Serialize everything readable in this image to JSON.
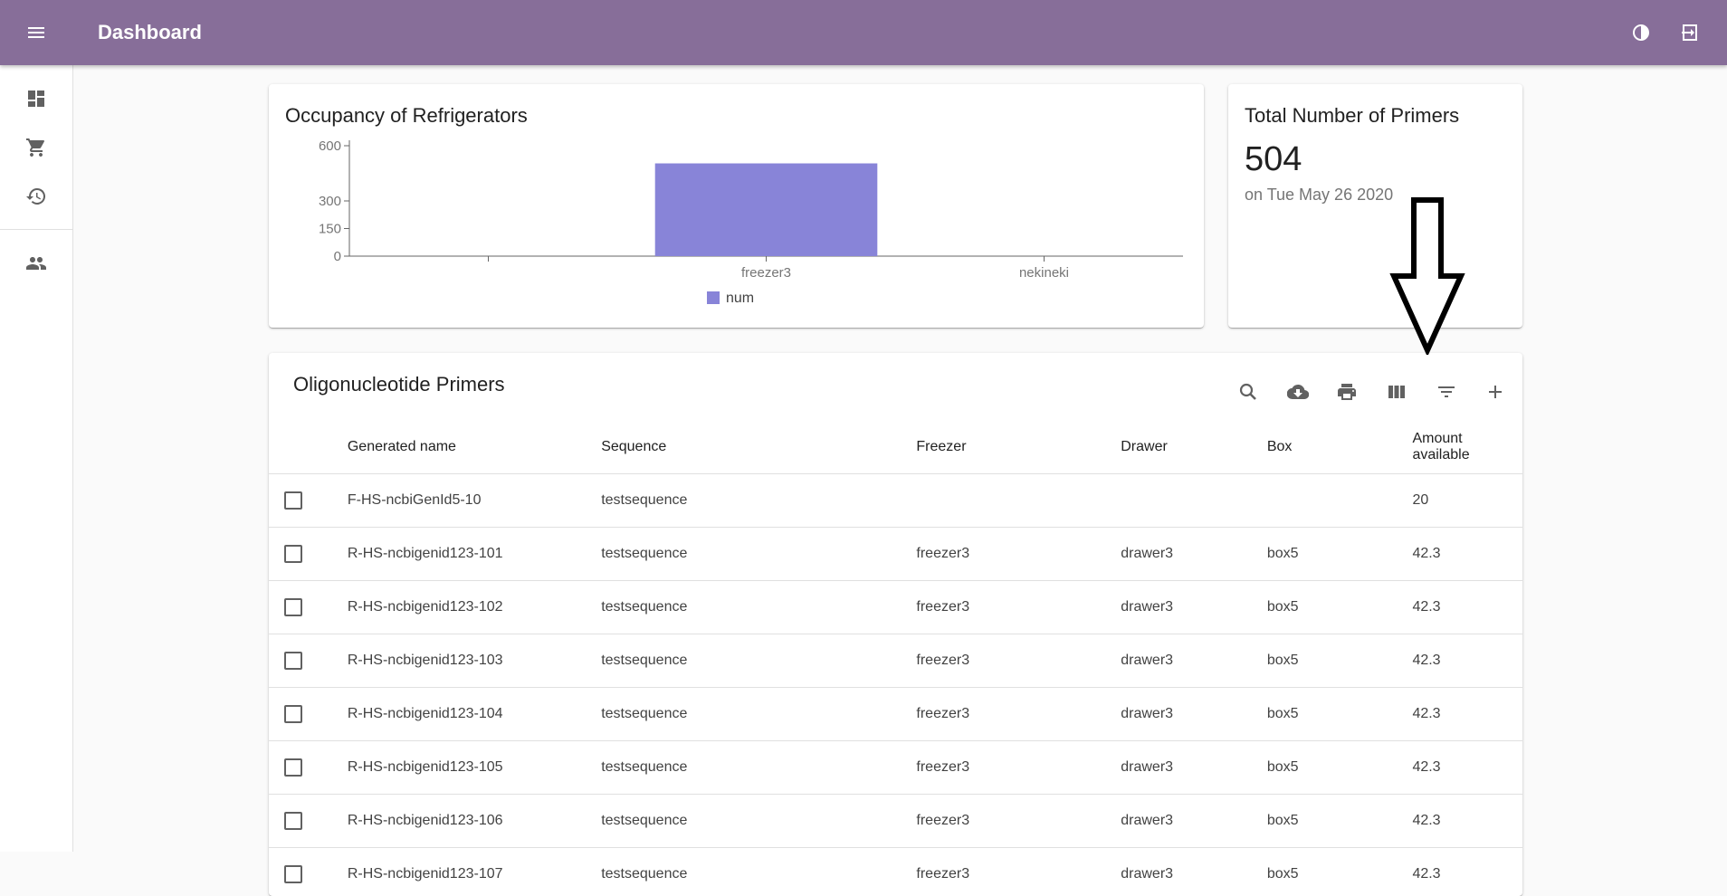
{
  "appbar": {
    "title": "Dashboard",
    "color": "#876e99"
  },
  "drawer": {
    "items": [
      "dashboard-icon",
      "cart-icon",
      "history-icon",
      "people-icon"
    ]
  },
  "chart_card": {
    "title": "Occupancy of Refrigerators",
    "chart_data": {
      "type": "bar",
      "categories": [
        "",
        "freezer3",
        "nekineki"
      ],
      "series": [
        {
          "name": "num",
          "values": [
            0,
            504,
            0
          ],
          "color": "#8884d8"
        }
      ],
      "yticks": [
        0,
        150,
        300,
        600
      ],
      "ylim": [
        0,
        600
      ],
      "legend": "bottom"
    }
  },
  "total_card": {
    "title": "Total Number of Primers",
    "value": "504",
    "date": "on Tue May 26 2020"
  },
  "table": {
    "title": "Oligonucleotide Primers",
    "toolbar": [
      "search-icon",
      "cloud-download-icon",
      "print-icon",
      "columns-icon",
      "filter-icon",
      "add-icon"
    ],
    "columns": [
      "Generated name",
      "Sequence",
      "Freezer",
      "Drawer",
      "Box",
      "Amount available"
    ],
    "rows": [
      [
        "F-HS-ncbiGenId5-10",
        "testsequence",
        "",
        "",
        "",
        "20"
      ],
      [
        "R-HS-ncbigenid123-101",
        "testsequence",
        "freezer3",
        "drawer3",
        "box5",
        "42.3"
      ],
      [
        "R-HS-ncbigenid123-102",
        "testsequence",
        "freezer3",
        "drawer3",
        "box5",
        "42.3"
      ],
      [
        "R-HS-ncbigenid123-103",
        "testsequence",
        "freezer3",
        "drawer3",
        "box5",
        "42.3"
      ],
      [
        "R-HS-ncbigenid123-104",
        "testsequence",
        "freezer3",
        "drawer3",
        "box5",
        "42.3"
      ],
      [
        "R-HS-ncbigenid123-105",
        "testsequence",
        "freezer3",
        "drawer3",
        "box5",
        "42.3"
      ],
      [
        "R-HS-ncbigenid123-106",
        "testsequence",
        "freezer3",
        "drawer3",
        "box5",
        "42.3"
      ],
      [
        "R-HS-ncbigenid123-107",
        "testsequence",
        "freezer3",
        "drawer3",
        "box5",
        "42.3"
      ]
    ]
  }
}
